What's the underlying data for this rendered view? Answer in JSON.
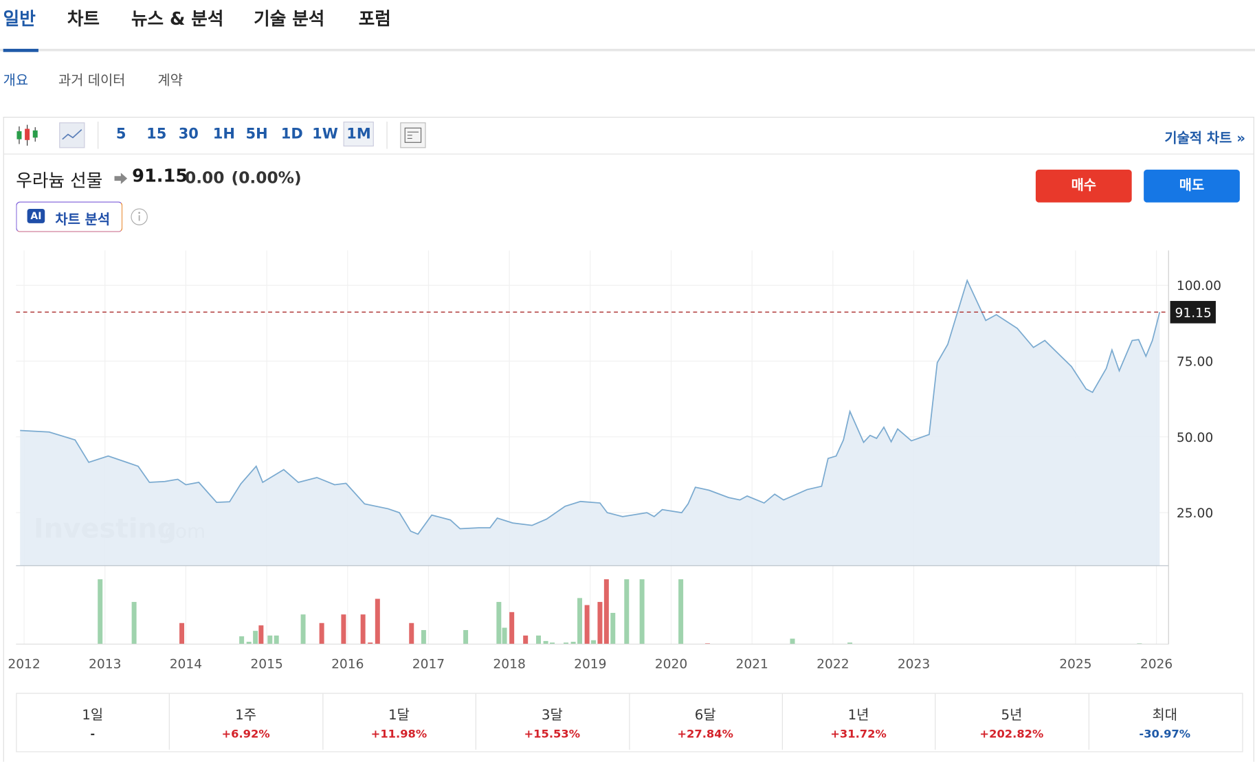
{
  "tabs": [
    "일반",
    "차트",
    "뉴스 & 분석",
    "기술 분석",
    "포럼"
  ],
  "subtabs": [
    "개요",
    "과거 데이터",
    "계약"
  ],
  "intervals": [
    "5",
    "15",
    "30",
    "1H",
    "5H",
    "1D",
    "1W",
    "1M"
  ],
  "technical_link": "기술적 차트 »",
  "instrument": "우라늄 선물",
  "price": "91.15",
  "change": "0.00",
  "change_pct": "(0.00%)",
  "buy": "매수",
  "sell": "매도",
  "ai_badge": "AI",
  "ai_label": "차트 분석",
  "watermark": "Investing",
  "watermark_suffix": ".com",
  "chart_data": {
    "type": "line",
    "color": "#7aaad0",
    "x": [
      2011.95,
      2012.31,
      2012.63,
      2012.8,
      2013.04,
      2013.27,
      2013.41,
      2013.55,
      2013.74,
      2013.9,
      2014.0,
      2014.16,
      2014.38,
      2014.54,
      2014.68,
      2014.87,
      2014.95,
      2015.21,
      2015.39,
      2015.62,
      2015.84,
      2015.98,
      2016.21,
      2016.5,
      2016.64,
      2016.78,
      2016.87,
      2017.04,
      2017.27,
      2017.39,
      2017.62,
      2017.76,
      2017.85,
      2018.04,
      2018.28,
      2018.46,
      2018.69,
      2018.88,
      2019.12,
      2019.21,
      2019.4,
      2019.7,
      2019.79,
      2019.89,
      2020.13,
      2020.21,
      2020.3,
      2020.47,
      2020.71,
      2020.85,
      2020.94,
      2021.15,
      2021.28,
      2021.39,
      2021.68,
      2021.86,
      2021.94,
      2022.04,
      2022.13,
      2022.21,
      2022.38,
      2022.46,
      2022.54,
      2022.63,
      2022.72,
      2022.8,
      2022.97,
      2023.19,
      2023.29,
      2023.42,
      2023.66,
      2023.89,
      2024.02,
      2024.28,
      2024.48,
      2024.62,
      2024.95,
      2025.13,
      2025.21,
      2025.38,
      2025.45,
      2025.54,
      2025.7,
      2025.78,
      2025.87,
      2025.95,
      2026.04
    ],
    "values": [
      52.1,
      51.6,
      49,
      41.6,
      43.7,
      41.6,
      40.3,
      35,
      35.3,
      36,
      34.2,
      35,
      28.4,
      28.6,
      34.5,
      40.3,
      35,
      39.2,
      35,
      36.6,
      34.2,
      34.7,
      27.9,
      26.3,
      25,
      18.9,
      17.9,
      24.2,
      22.6,
      19.7,
      20,
      20,
      23.2,
      21.6,
      20.8,
      22.9,
      27.1,
      28.7,
      28.2,
      25,
      23.7,
      25,
      23.7,
      26,
      25,
      27.9,
      33.4,
      32.4,
      30,
      29.2,
      30.5,
      28.2,
      31.1,
      29.2,
      32.6,
      33.7,
      42.9,
      43.7,
      49,
      58.4,
      48.2,
      50.5,
      49.5,
      53.2,
      48.4,
      52.6,
      48.7,
      50.8,
      74.5,
      80.5,
      101.6,
      88.4,
      90.3,
      85.8,
      79.5,
      81.8,
      73.2,
      65.8,
      64.7,
      72.6,
      78.7,
      71.8,
      81.8,
      82.1,
      76.6,
      81.8,
      91.15
    ],
    "xlim": [
      2011.9,
      2026.15
    ],
    "xticks": [
      2012,
      2013,
      2014,
      2015,
      2016,
      2017,
      2018,
      2019,
      2020,
      2021,
      2022,
      2023,
      2025,
      2026
    ],
    "ylim": [
      7.5,
      111.5
    ],
    "yticks": [
      {
        "value": 25,
        "label": "25.00"
      },
      {
        "value": 50,
        "label": "50.00"
      },
      {
        "value": 75,
        "label": "75.00"
      },
      {
        "value": 100,
        "label": "100.00"
      }
    ],
    "grid": true,
    "last_value": 91.15,
    "last_value_color": "#b03a3a",
    "volume": {
      "ylim": [
        0,
        85
      ],
      "x": [
        2012.94,
        2013.36,
        2013.95,
        2014.69,
        2014.78,
        2014.86,
        2014.93,
        2015.04,
        2015.12,
        2015.45,
        2015.68,
        2015.95,
        2016.19,
        2016.28,
        2016.37,
        2016.79,
        2016.94,
        2017.46,
        2017.87,
        2017.94,
        2018.03,
        2018.2,
        2018.36,
        2018.45,
        2018.53,
        2018.7,
        2018.79,
        2018.87,
        2018.96,
        2019.04,
        2019.12,
        2019.2,
        2019.28,
        2019.45,
        2019.64,
        2020.12,
        2020.45,
        2021.5,
        2022.21,
        2025.79
      ],
      "values": [
        83,
        54,
        27,
        10,
        3,
        17,
        24,
        11,
        11,
        38,
        27,
        38,
        38,
        2,
        58,
        27,
        18,
        18,
        54,
        21,
        41,
        11,
        11,
        4,
        2,
        2,
        3,
        59,
        50,
        5,
        54,
        83,
        40,
        83,
        83,
        83,
        1,
        7,
        2,
        1
      ],
      "colors": [
        "#9fd3ad",
        "#9fd3ad",
        "#e06666",
        "#9fd3ad",
        "#9fd3ad",
        "#9fd3ad",
        "#e06666",
        "#9fd3ad",
        "#9fd3ad",
        "#9fd3ad",
        "#e06666",
        "#e06666",
        "#e06666",
        "#e06666",
        "#e06666",
        "#e06666",
        "#9fd3ad",
        "#9fd3ad",
        "#9fd3ad",
        "#9fd3ad",
        "#e06666",
        "#e06666",
        "#9fd3ad",
        "#9fd3ad",
        "#9fd3ad",
        "#9fd3ad",
        "#9fd3ad",
        "#9fd3ad",
        "#e06666",
        "#9fd3ad",
        "#e06666",
        "#e06666",
        "#9fd3ad",
        "#9fd3ad",
        "#9fd3ad",
        "#9fd3ad",
        "#e06666",
        "#9fd3ad",
        "#9fd3ad",
        "#9fd3ad"
      ]
    }
  },
  "performance": [
    {
      "period": "1일",
      "value": "-"
    },
    {
      "period": "1주",
      "value": "+6.92%"
    },
    {
      "period": "1달",
      "value": "+11.98%"
    },
    {
      "period": "3달",
      "value": "+15.53%"
    },
    {
      "period": "6달",
      "value": "+27.84%"
    },
    {
      "period": "1년",
      "value": "+31.72%"
    },
    {
      "period": "5년",
      "value": "+202.82%"
    },
    {
      "period": "최대",
      "value": "-30.97%"
    }
  ]
}
